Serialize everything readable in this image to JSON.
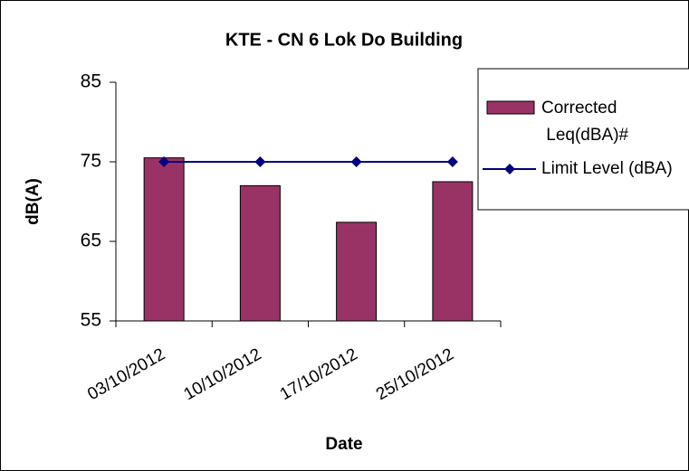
{
  "chart_data": {
    "type": "bar",
    "title": "KTE - CN 6 Lok Do Building",
    "xlabel": "Date",
    "ylabel": "dB(A)",
    "categories": [
      "03/10/2012",
      "10/10/2012",
      "17/10/2012",
      "25/10/2012"
    ],
    "series": [
      {
        "name": "Corrected Leq(dBA)#",
        "type": "bar",
        "color": "#993366",
        "values": [
          75.5,
          72,
          67.4,
          72.5
        ]
      },
      {
        "name": "Limit Level (dBA)",
        "type": "line",
        "color": "#000080",
        "values": [
          75,
          75,
          75,
          75
        ]
      }
    ],
    "ylim": [
      55,
      85
    ],
    "yticks": [
      55,
      65,
      75,
      85
    ],
    "grid": false,
    "legend": "right"
  }
}
